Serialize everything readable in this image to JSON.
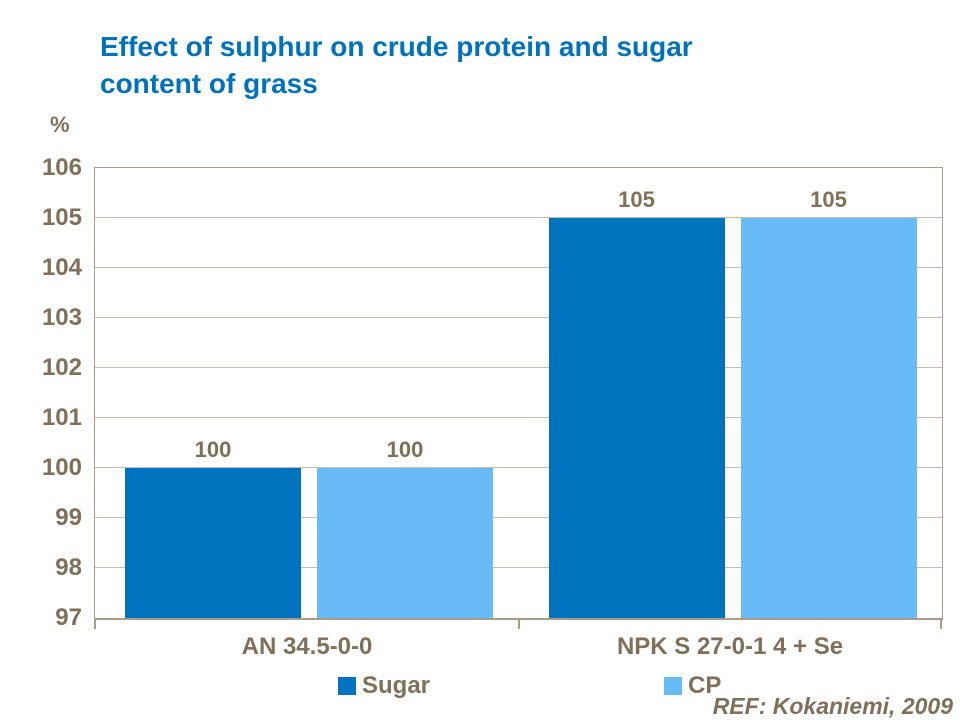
{
  "title": {
    "text": "Effect of sulphur on crude protein and sugar\ncontent of grass"
  },
  "ref_note": "REF: Kokaniemi, 2009",
  "chart_data": {
    "type": "bar",
    "title": "Effect of sulphur on crude protein and sugar content of grass",
    "ylabel": "%",
    "xlabel": "",
    "categories": [
      "AN 34.5-0-0",
      "NPK S 27-0-1 4 + Se"
    ],
    "series": [
      {
        "name": "Sugar",
        "values": [
          100,
          105
        ],
        "color": "#0073BE"
      },
      {
        "name": "CP",
        "values": [
          100,
          105
        ],
        "color": "#69BBF8"
      }
    ],
    "data_labels": {
      "Sugar": [
        100,
        105
      ],
      "CP": [
        100,
        105
      ]
    },
    "ylim": [
      97,
      106
    ],
    "ytick_step": 1,
    "grid": true,
    "legend_position": "bottom"
  },
  "colors": {
    "title_text": "#0072BC",
    "axis_text": "#7E7059",
    "plot_border": "#A89C8D",
    "gridline": "#C6BCAE",
    "sugar_bar": "#0073BE",
    "cp_bar": "#69BBF8",
    "background": "#FFFFFF"
  }
}
